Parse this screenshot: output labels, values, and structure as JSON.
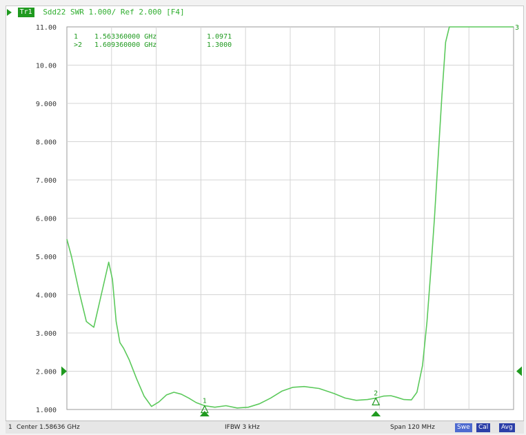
{
  "header": {
    "trace_badge": "Tr1",
    "trace_info": "Sdd22 SWR 1.000/ Ref 2.000 [F4]"
  },
  "marker_table": [
    {
      "label": "1",
      "freq": "1.563360000 GHz",
      "value": "1.0971"
    },
    {
      "label": ">2",
      "freq": "1.609360000 GHz",
      "value": "1.3000"
    }
  ],
  "status": {
    "channel": "1",
    "center": "Center 1.58636 GHz",
    "ifbw": "IFBW 3 kHz",
    "span": "Span 120 MHz",
    "badge_sweep": "Swe",
    "badge_cal": "Cal",
    "badge_avg": "Avg"
  },
  "colors": {
    "trace": "#5bc95b",
    "grid": "#d4d4d4",
    "marker": "#1f9a1f",
    "badge_blue": "#2c3fa8",
    "badge_blue_light": "#4e6bd0"
  },
  "chart_data": {
    "type": "line",
    "x_range_ghz": [
      1.52636,
      1.64636
    ],
    "ylim": [
      1.0,
      11.0
    ],
    "y_ticks": [
      "1.000",
      "2.000",
      "3.000",
      "4.000",
      "5.000",
      "6.000",
      "7.000",
      "8.000",
      "9.000",
      "10.00",
      "11.00"
    ],
    "reference_level": 2.0,
    "grid": true,
    "series": [
      {
        "x": [
          1.52636,
          1.5276,
          1.5296,
          1.5316,
          1.5336,
          1.5356,
          1.5376,
          1.5386,
          1.5396,
          1.5406,
          1.5416,
          1.5431,
          1.5451,
          1.5471,
          1.5491,
          1.5511,
          1.5531,
          1.5551,
          1.5571,
          1.5591,
          1.5611,
          1.5634,
          1.5661,
          1.5691,
          1.5721,
          1.5751,
          1.5781,
          1.5811,
          1.5841,
          1.5871,
          1.5901,
          1.5941,
          1.5981,
          1.6011,
          1.6041,
          1.6071,
          1.6094,
          1.6114,
          1.6134,
          1.6149,
          1.6169,
          1.6189,
          1.6204,
          1.6219,
          1.6231,
          1.6241,
          1.6251,
          1.6261,
          1.6271,
          1.6281,
          1.6291,
          1.6301,
          1.6316,
          1.6331,
          1.6346,
          1.6361,
          1.6376,
          1.6391,
          1.6411,
          1.6431,
          1.6451,
          1.64636
        ],
        "y": [
          5.45,
          5.0,
          4.1,
          3.3,
          3.15,
          4.0,
          4.85,
          4.4,
          3.3,
          2.75,
          2.6,
          2.3,
          1.8,
          1.35,
          1.08,
          1.2,
          1.38,
          1.45,
          1.4,
          1.3,
          1.18,
          1.0971,
          1.06,
          1.1,
          1.04,
          1.06,
          1.15,
          1.3,
          1.48,
          1.58,
          1.6,
          1.55,
          1.42,
          1.3,
          1.24,
          1.26,
          1.3,
          1.35,
          1.36,
          1.32,
          1.26,
          1.25,
          1.45,
          2.15,
          3.3,
          4.6,
          6.0,
          7.6,
          9.2,
          10.6,
          11.0,
          11.0,
          11.0,
          11.0,
          11.0,
          11.0,
          11.0,
          11.0,
          11.0,
          11.0,
          11.0,
          11.0
        ]
      }
    ],
    "markers": [
      {
        "label": "1",
        "x": 1.56336,
        "y": 1.0971
      },
      {
        "label": "2",
        "x": 1.60936,
        "y": 1.3
      }
    ],
    "end_label": "3"
  }
}
